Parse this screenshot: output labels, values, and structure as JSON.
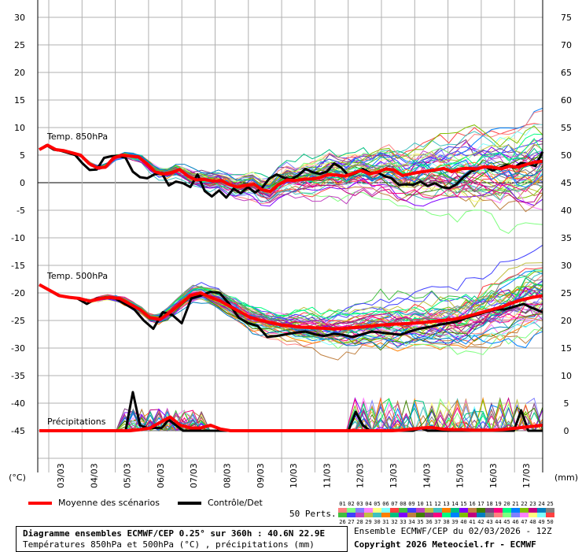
{
  "chart_data": {
    "type": "line",
    "left_axis_unit": "(°C)",
    "right_axis_unit": "(mm)",
    "left_ticks": [
      "30",
      "25",
      "20",
      "15",
      "10",
      "5",
      "0",
      "-5",
      "-10",
      "-15",
      "-20",
      "-25",
      "-30",
      "-35",
      "-40",
      "-45"
    ],
    "right_ticks": [
      "75",
      "70",
      "65",
      "60",
      "55",
      "50",
      "45",
      "40",
      "35",
      "30",
      "25",
      "20",
      "15",
      "10",
      "5",
      "0"
    ],
    "x_labels": [
      "03/03",
      "04/03",
      "05/03",
      "06/03",
      "07/03",
      "08/03",
      "09/03",
      "10/03",
      "11/03",
      "12/03",
      "13/03",
      "14/03",
      "15/03",
      "16/03",
      "17/03"
    ],
    "panel_labels": {
      "t850": "Temp. 850hPa",
      "t500": "Temp. 500hPa",
      "precip": "Précipitations"
    },
    "t850_mean": [
      6,
      6.8,
      6,
      5.8,
      5.4,
      5,
      3.5,
      2.7,
      2.8,
      4.5,
      5,
      4.8,
      4.7,
      3.5,
      2,
      1.6,
      1.8,
      2.4,
      1.2,
      0.5,
      0.6,
      0.3,
      0.4,
      -0.3,
      -0.8,
      -0.5,
      -0.3,
      -1.3,
      -1.6,
      -0.3,
      0.5,
      0.4,
      0.6,
      0.7,
      0.9,
      1.5,
      1.4,
      1.2,
      1.7,
      2.2,
      1.6,
      1.9,
      2.5,
      2.3,
      1.3,
      1.6,
      1.9,
      2.1,
      2.3,
      2.6,
      2.0,
      2.5,
      2.6,
      2.5,
      2.9,
      2.8,
      2.5,
      3,
      2.8,
      3.3,
      3.7,
      3.9
    ],
    "t850_control": [
      6,
      6.8,
      6,
      5.8,
      5.4,
      5,
      3.5,
      2.3,
      2.4,
      4.5,
      4.8,
      4.9,
      4.5,
      2,
      1,
      0.8,
      1.5,
      1.8,
      -0.5,
      0.2,
      -0.1,
      -0.8,
      1.5,
      -1.5,
      -2.5,
      -1.4,
      -2.7,
      -1.1,
      -1.9,
      -0.8,
      -1.8,
      -0.9,
      0.8,
      1.5,
      0.9,
      0.6,
      1.3,
      2.5,
      1.9,
      1.6,
      2.0,
      3.5,
      2.7,
      1.3,
      1.7,
      2.5,
      1.8,
      1.9,
      1.2,
      0.8,
      -0.4,
      -0.3,
      -0.4,
      0.2,
      -0.6,
      -0.1,
      -0.8,
      -1,
      -0.3,
      1,
      2,
      2.5,
      2.9,
      2.2,
      2.7,
      3.2,
      2.7,
      3.6,
      3.4,
      3.0,
      5.6
    ],
    "t500_mean": [
      -18.5,
      -19.5,
      -20.5,
      -20.8,
      -21,
      -21.5,
      -21,
      -20.8,
      -21,
      -22,
      -23,
      -24.5,
      -24.8,
      -23.5,
      -22,
      -20.5,
      -20,
      -20.8,
      -21.5,
      -22.5,
      -23.5,
      -24.5,
      -25,
      -25.4,
      -25.8,
      -26,
      -26.2,
      -26.3,
      -26.4,
      -26.5,
      -26.5,
      -26.3,
      -26.2,
      -26,
      -25.8,
      -25.7,
      -25.6,
      -25.5,
      -25.4,
      -25.2,
      -25,
      -24.8,
      -24.5,
      -24,
      -23.5,
      -23,
      -22.5,
      -21.8,
      -21.2,
      -20.8,
      -20.5
    ],
    "t500_control": [
      -18.5,
      -19.5,
      -20.5,
      -20.8,
      -21,
      -22,
      -21,
      -20.8,
      -21,
      -22,
      -23,
      -25,
      -26.5,
      -23.5,
      -24,
      -25.5,
      -21,
      -20.5,
      -19.8,
      -20,
      -22,
      -24.5,
      -25.5,
      -26,
      -28,
      -27.8,
      -27.5,
      -27.2,
      -27,
      -27.5,
      -27.8,
      -27.4,
      -27.6,
      -28,
      -27.5,
      -27,
      -27.2,
      -27.4,
      -27.6,
      -27,
      -26.5,
      -26.2,
      -25.8,
      -25.5,
      -25.2,
      -24.5,
      -24,
      -23.5,
      -23,
      -23,
      -22.5,
      -22,
      -22.8,
      -23.5
    ],
    "precip_mean": [
      0,
      0,
      0,
      0,
      0,
      0,
      0,
      0,
      0,
      0,
      0.2,
      0.5,
      1.5,
      2.5,
      1,
      0.5,
      0.5,
      1,
      0.3,
      0,
      0,
      0,
      0,
      0,
      0,
      0,
      0,
      0,
      0,
      0,
      0,
      0,
      0,
      0,
      0,
      0,
      0.1,
      0.3,
      0.5,
      0.6,
      0.3,
      0.2,
      0.2,
      0.1,
      0.1,
      0.1,
      0.2,
      0.4,
      0.6,
      0.8,
      1.0
    ],
    "precip_control": [
      0,
      0,
      0,
      0,
      0,
      0,
      0,
      0,
      0,
      0,
      0,
      0,
      0,
      7,
      1,
      0.5,
      0.5,
      0.5,
      2,
      1,
      0,
      0,
      0,
      0,
      0,
      0,
      0,
      0,
      0,
      0,
      0,
      0,
      0,
      0,
      0,
      0,
      0,
      0,
      0,
      0,
      0,
      0,
      0,
      0,
      3.4,
      1,
      0,
      0,
      0,
      0,
      0,
      0,
      0,
      0.5,
      0,
      0,
      0,
      0,
      0,
      0,
      0,
      0,
      0,
      0,
      0,
      0,
      0,
      3.7,
      0,
      0,
      0
    ],
    "series_names": [
      "Moyenne des scénarios",
      "Contrôle/Det",
      "50 Perts."
    ],
    "colors": {
      "mean": "#ff0000",
      "control": "#000000",
      "grid": "#b0b0b0",
      "zero": "#000000"
    },
    "member_count": 50
  },
  "legend": {
    "mean_label": "Moyenne des scénarios",
    "control_label": "Contrôle/Det",
    "perts_label": "50 Perts.",
    "members_row1": [
      "01",
      "02",
      "03",
      "04",
      "05",
      "06",
      "07",
      "08",
      "09",
      "10",
      "11",
      "12",
      "13",
      "14",
      "15",
      "16",
      "17",
      "18",
      "19",
      "20",
      "21",
      "22",
      "23",
      "24",
      "25"
    ],
    "members_row2": [
      "26",
      "27",
      "28",
      "29",
      "30",
      "31",
      "32",
      "33",
      "34",
      "35",
      "36",
      "37",
      "38",
      "39",
      "40",
      "41",
      "42",
      "43",
      "44",
      "45",
      "46",
      "47",
      "48",
      "49",
      "50"
    ],
    "member_colors": [
      "#ff8080",
      "#80ff80",
      "#8080ff",
      "#ff80ff",
      "#ffff80",
      "#80ffff",
      "#ff4040",
      "#40c040",
      "#4040ff",
      "#c040c0",
      "#c0c040",
      "#40c0c0",
      "#ff8000",
      "#00c080",
      "#8000ff",
      "#c08040",
      "#408000",
      "#804080",
      "#ff0080",
      "#00ff80",
      "#0080ff",
      "#80c000",
      "#c00080",
      "#0080c0",
      "#808080"
    ]
  },
  "footer": {
    "line1": "Diagramme ensembles ECMWF/CEP 0.25° sur 360h : 40.6N 22.9E",
    "line2": "Températures 850hPa et 500hPa (°C) , précipitations (mm)",
    "right1": "Ensemble ECMWF/CEP du 02/03/2026 - 12Z",
    "right2": "Copyright 2026 Meteociel.fr - ECMWF"
  }
}
